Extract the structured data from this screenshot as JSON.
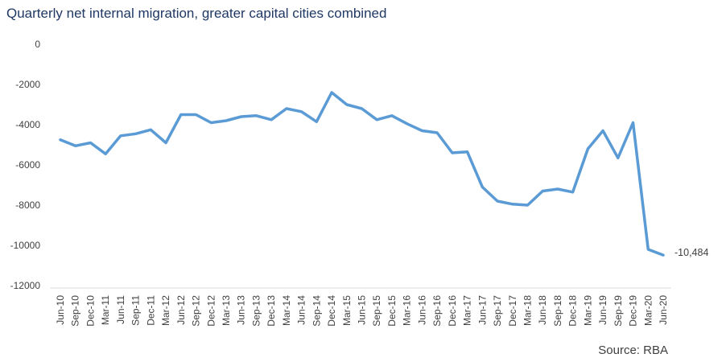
{
  "title": "Quarterly net internal migration, greater capital cities combined",
  "source": "Source: RBA",
  "chart_data": {
    "type": "line",
    "title": "Quarterly net internal migration, greater capital cities combined",
    "xlabel": "",
    "ylabel": "",
    "ylim": [
      -12000,
      0
    ],
    "y_ticks": [
      "0",
      "-2000",
      "-4000",
      "-6000",
      "-8000",
      "-10000",
      "-12000"
    ],
    "y_tick_values": [
      0,
      -2000,
      -4000,
      -6000,
      -8000,
      -10000,
      -12000
    ],
    "grid": false,
    "legend": "none",
    "line_color": "#5b9bd5",
    "categories": [
      "Jun-10",
      "Sep-10",
      "Dec-10",
      "Mar-11",
      "Jun-11",
      "Sep-11",
      "Dec-11",
      "Mar-12",
      "Jun-12",
      "Sep-12",
      "Dec-12",
      "Mar-13",
      "Jun-13",
      "Sep-13",
      "Dec-13",
      "Mar-14",
      "Jun-14",
      "Sep-14",
      "Dec-14",
      "Mar-15",
      "Jun-15",
      "Sep-15",
      "Dec-15",
      "Mar-16",
      "Jun-16",
      "Sep-16",
      "Dec-16",
      "Mar-17",
      "Jun-17",
      "Sep-17",
      "Dec-17",
      "Mar-18",
      "Jun-18",
      "Sep-18",
      "Dec-18",
      "Mar-19",
      "Jun-19",
      "Sep-19",
      "Dec-19",
      "Mar-20",
      "Jun-20"
    ],
    "values": [
      -4750,
      -5050,
      -4900,
      -5450,
      -4550,
      -4450,
      -4250,
      -4900,
      -3500,
      -3500,
      -3900,
      -3800,
      -3600,
      -3550,
      -3750,
      -3200,
      -3350,
      -3850,
      -2400,
      -3000,
      -3200,
      -3750,
      -3550,
      -3950,
      -4300,
      -4400,
      -5400,
      -5350,
      -7100,
      -7800,
      -7950,
      -8000,
      -7300,
      -7200,
      -7350,
      -5200,
      -4300,
      -5650,
      -3900,
      -10200,
      -10484
    ],
    "end_label": "-10,484"
  }
}
